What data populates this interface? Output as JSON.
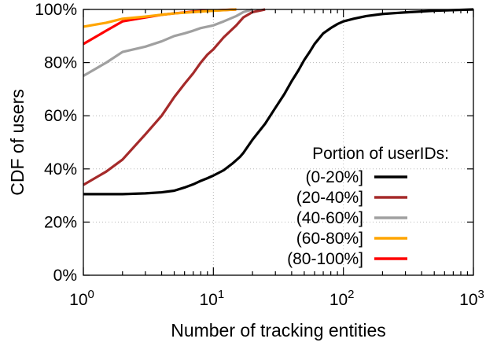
{
  "chart_data": {
    "type": "line",
    "x_scale": "log",
    "xlim": [
      1,
      1000
    ],
    "ylim": [
      0,
      100
    ],
    "xlabel": "Number of tracking entities",
    "ylabel": "CDF of users",
    "grid": true,
    "legend_position": "bottom-right",
    "legend_title": "Portion of userIDs:",
    "x_ticks": [
      {
        "value": 1,
        "base": "10",
        "exp": "0"
      },
      {
        "value": 10,
        "base": "10",
        "exp": "1"
      },
      {
        "value": 100,
        "base": "10",
        "exp": "2"
      },
      {
        "value": 1000,
        "base": "10",
        "exp": "3"
      }
    ],
    "y_ticks": [
      {
        "value": 0,
        "label": "0%"
      },
      {
        "value": 20,
        "label": "20%"
      },
      {
        "value": 40,
        "label": "40%"
      },
      {
        "value": 60,
        "label": "60%"
      },
      {
        "value": 80,
        "label": "80%"
      },
      {
        "value": 100,
        "label": "100%"
      }
    ],
    "series": [
      {
        "name": "(0-20%]",
        "color": "#000000",
        "points": [
          [
            1,
            30.5
          ],
          [
            2,
            30.5
          ],
          [
            3,
            30.8
          ],
          [
            4,
            31.2
          ],
          [
            5,
            31.8
          ],
          [
            6,
            33
          ],
          [
            7,
            34.2
          ],
          [
            8,
            35.5
          ],
          [
            9,
            36.5
          ],
          [
            10,
            37.5
          ],
          [
            12,
            39.5
          ],
          [
            14,
            42
          ],
          [
            16,
            44.5
          ],
          [
            17,
            46
          ],
          [
            20,
            51
          ],
          [
            25,
            57
          ],
          [
            30,
            63
          ],
          [
            35,
            68
          ],
          [
            40,
            73
          ],
          [
            45,
            77
          ],
          [
            50,
            81
          ],
          [
            55,
            84
          ],
          [
            60,
            87
          ],
          [
            70,
            91
          ],
          [
            80,
            93
          ],
          [
            90,
            94.5
          ],
          [
            100,
            95.5
          ],
          [
            120,
            96.5
          ],
          [
            150,
            97.5
          ],
          [
            200,
            98.3
          ],
          [
            300,
            98.9
          ],
          [
            500,
            99.5
          ],
          [
            1000,
            100
          ]
        ]
      },
      {
        "name": "(20-40%]",
        "color": "#a52a2a",
        "points": [
          [
            1,
            34
          ],
          [
            1.5,
            39
          ],
          [
            2,
            43.5
          ],
          [
            3,
            53
          ],
          [
            4,
            60
          ],
          [
            5,
            67
          ],
          [
            6,
            72
          ],
          [
            7,
            76
          ],
          [
            8,
            80
          ],
          [
            9,
            83
          ],
          [
            10,
            85
          ],
          [
            12,
            89.5
          ],
          [
            15,
            94
          ],
          [
            17,
            97
          ],
          [
            20,
            99
          ],
          [
            25,
            100
          ]
        ]
      },
      {
        "name": "(40-60%]",
        "color": "#a0a0a0",
        "points": [
          [
            1,
            75
          ],
          [
            1.5,
            80
          ],
          [
            2,
            84
          ],
          [
            3,
            86
          ],
          [
            4,
            88
          ],
          [
            5,
            90
          ],
          [
            6,
            91
          ],
          [
            7,
            92
          ],
          [
            8,
            93
          ],
          [
            10,
            94
          ],
          [
            12,
            95.5
          ],
          [
            15,
            97.5
          ],
          [
            17,
            99
          ],
          [
            20,
            100
          ]
        ]
      },
      {
        "name": "(60-80%]",
        "color": "#ffa500",
        "points": [
          [
            1,
            93.5
          ],
          [
            1.5,
            95
          ],
          [
            2,
            96.5
          ],
          [
            3,
            97.3
          ],
          [
            4,
            98
          ],
          [
            5,
            98.5
          ],
          [
            7,
            99
          ],
          [
            10,
            99.5
          ],
          [
            15,
            100
          ]
        ]
      },
      {
        "name": "(80-100%]",
        "color": "#ff0000",
        "points": [
          [
            1,
            87
          ],
          [
            1.5,
            92
          ],
          [
            2,
            95.5
          ],
          [
            3,
            97
          ],
          [
            4,
            98
          ],
          [
            5,
            98.5
          ],
          [
            7,
            99.2
          ],
          [
            10,
            99.6
          ],
          [
            15,
            100
          ]
        ]
      }
    ]
  }
}
